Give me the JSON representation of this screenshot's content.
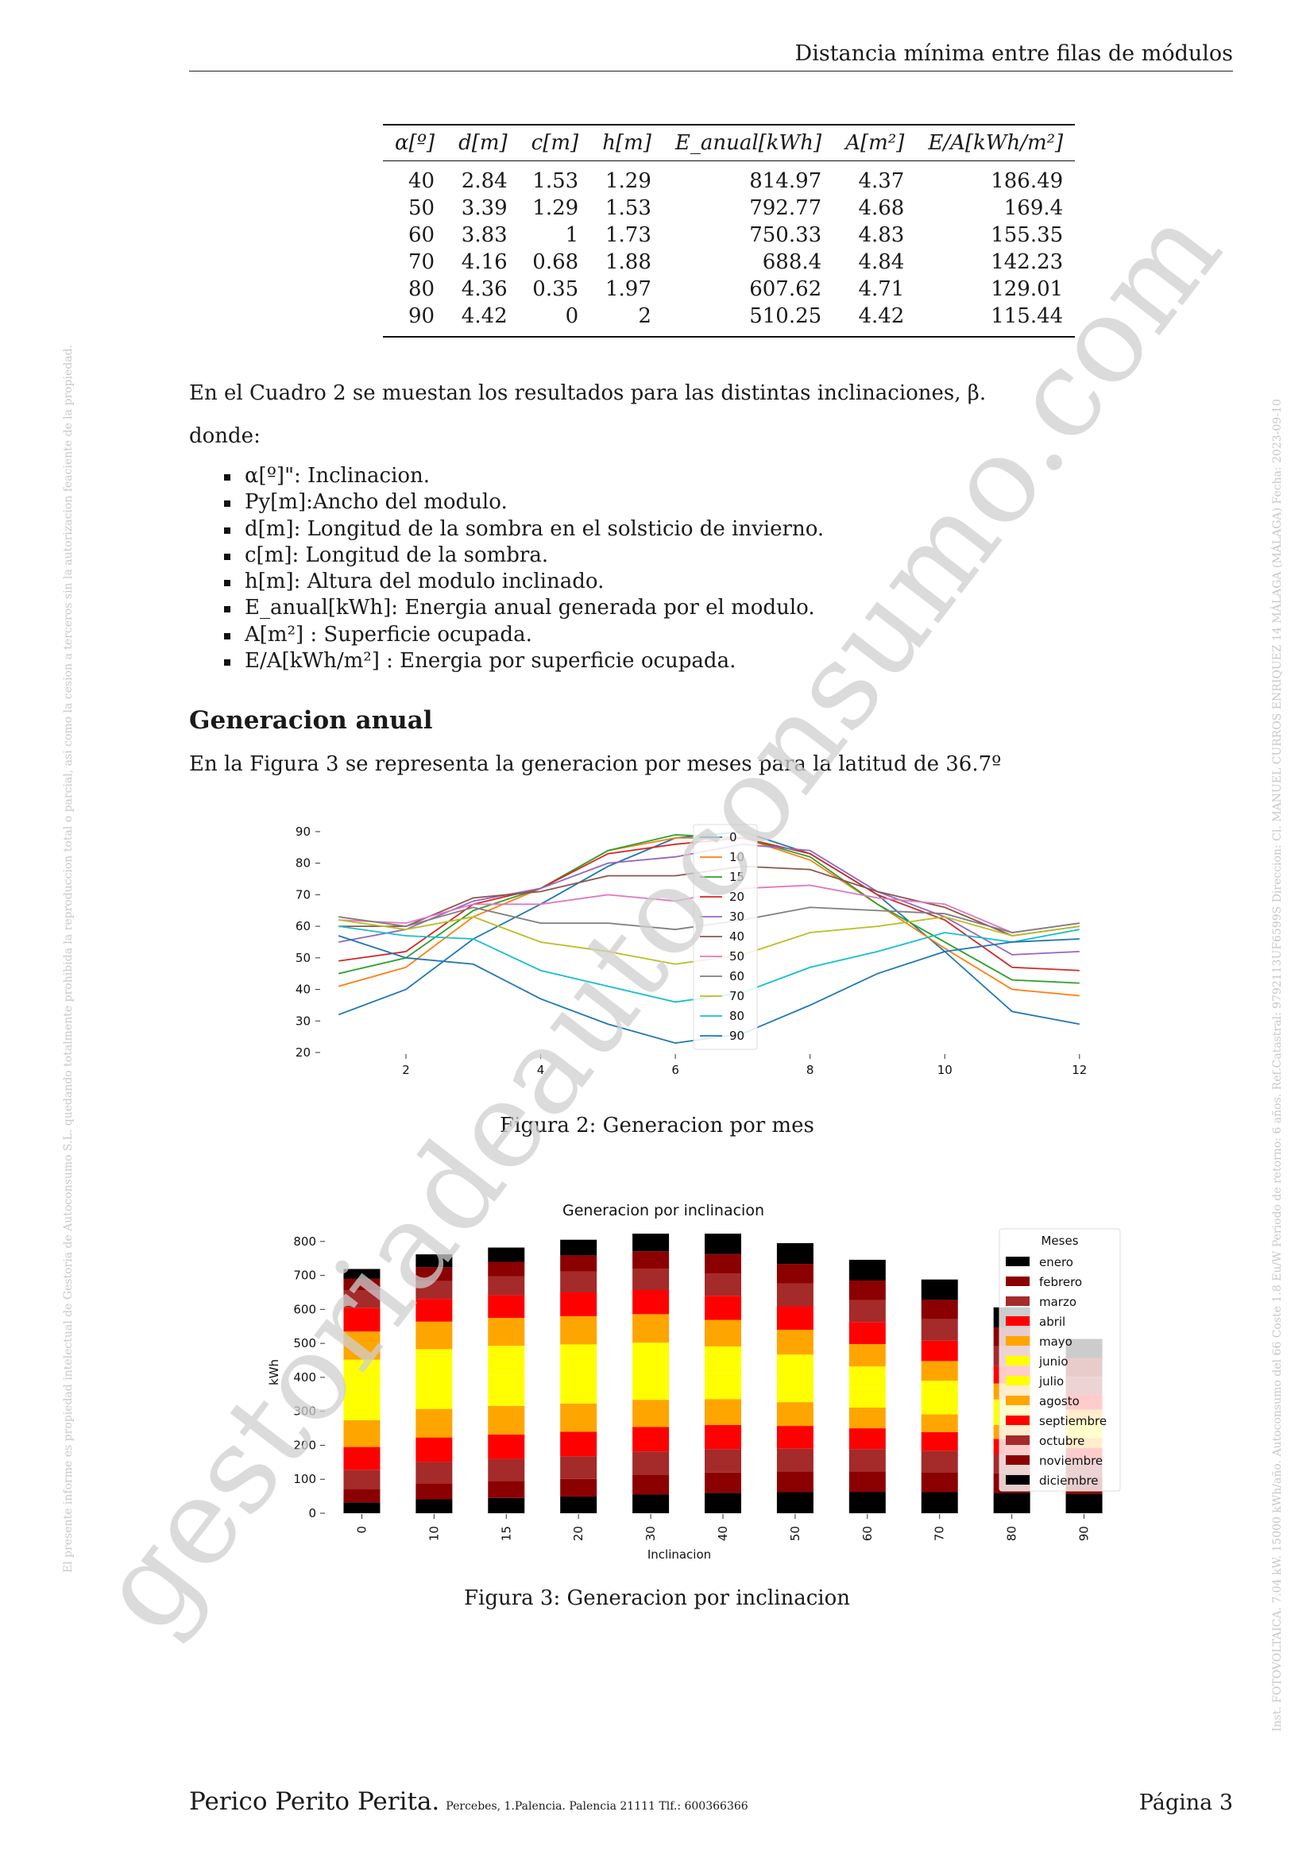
{
  "header": {
    "title": "Distancia mínima entre filas de módulos"
  },
  "table": {
    "headers": [
      "α[º]",
      "d[m]",
      "c[m]",
      "h[m]",
      "E_anual[kWh]",
      "A[m²]",
      "E/A[kWh/m²]"
    ],
    "rows": [
      [
        "40",
        "2.84",
        "1.53",
        "1.29",
        "814.97",
        "4.37",
        "186.49"
      ],
      [
        "50",
        "3.39",
        "1.29",
        "1.53",
        "792.77",
        "4.68",
        "169.4"
      ],
      [
        "60",
        "3.83",
        "1",
        "1.73",
        "750.33",
        "4.83",
        "155.35"
      ],
      [
        "70",
        "4.16",
        "0.68",
        "1.88",
        "688.4",
        "4.84",
        "142.23"
      ],
      [
        "80",
        "4.36",
        "0.35",
        "1.97",
        "607.62",
        "4.71",
        "129.01"
      ],
      [
        "90",
        "4.42",
        "0",
        "2",
        "510.25",
        "4.42",
        "115.44"
      ]
    ]
  },
  "text": {
    "intro": "En el Cuadro 2 se muestan los resultados para las distintas inclinaciones, β.",
    "donde": "donde:",
    "definitions": [
      "α[º]\": Inclinacion.",
      "Py[m]:Ancho del modulo.",
      "d[m]: Longitud de la sombra en el solsticio de invierno.",
      "c[m]: Longitud de la sombra.",
      "h[m]: Altura del modulo inclinado.",
      "E_anual[kWh]: Energia anual generada por el modulo.",
      "A[m²] : Superficie ocupada.",
      "E/A[kWh/m²] : Energia por superficie ocupada."
    ],
    "section_title": "Generacion anual",
    "section_text": "En la Figura 3 se representa la generacion por meses para la latitud de 36.7º",
    "caption_fig2": "Figura 2: Generacion por mes",
    "caption_fig3": "Figura 3: Generacion por inclinacion"
  },
  "footer": {
    "name": "Perico Perito Perita.",
    "address": "Percebes, 1.Palencia. Palencia 21111 Tlf.: 600366366",
    "page": "Página 3"
  },
  "watermark": "gestoriadeautoconsumo.com",
  "side_notes": {
    "left": "El presente informe es propiedad intelectual de Gestoria de Autoconsumo S.L. quedando totalmente prohibida la reproduccion total o parcial, asi como la cesion a terceros sin la autorizacion feaciente de la propiedad.",
    "right": "Inst. FOTOVOLTAICA. 7.04 kW. 15000 kWh/año. Autoconsumo del 66 Coste 1.8 Eu/W Periodo de retorno: 6 años. Ref.Catastral: 9792113UF6599S Direccion: Cl. MANUEL CURROS ENRIQUEZ 14 MÁLAGA (MÁLAGA) Fecha: 2023-09-10"
  },
  "colors": {
    "line_series": [
      "#1f77b4",
      "#ff7f0e",
      "#2ca02c",
      "#d62728",
      "#9467bd",
      "#8c564b",
      "#e377c2",
      "#7f7f7f",
      "#bcbd22",
      "#17becf",
      "#1f77b4"
    ],
    "months": [
      "#000000",
      "#8b0000",
      "#a52a2a",
      "#ff0000",
      "#ffa500",
      "#ffff00",
      "#ffff00",
      "#ffa500",
      "#ff0000",
      "#a52a2a",
      "#8b0000",
      "#000000"
    ]
  },
  "chart_data": [
    {
      "type": "line",
      "title": "",
      "x": [
        1,
        2,
        3,
        4,
        5,
        6,
        7,
        8,
        9,
        10,
        11,
        12
      ],
      "xticks": [
        2,
        4,
        6,
        8,
        10,
        12
      ],
      "ylim": [
        20,
        93
      ],
      "yticks": [
        20,
        30,
        40,
        50,
        60,
        70,
        80,
        90
      ],
      "legend_position": "top-center",
      "series": [
        {
          "name": "0",
          "values": [
            32,
            40,
            56,
            67,
            79,
            88,
            90,
            83,
            70,
            52,
            33,
            29
          ]
        },
        {
          "name": "10",
          "values": [
            41,
            47,
            63,
            72,
            84,
            88,
            88,
            81,
            67,
            53,
            40,
            38
          ]
        },
        {
          "name": "15",
          "values": [
            45,
            50,
            65,
            72,
            84,
            89,
            88,
            82,
            67,
            55,
            43,
            42
          ]
        },
        {
          "name": "20",
          "values": [
            49,
            52,
            67,
            72,
            83,
            86,
            88,
            83,
            70,
            62,
            47,
            46
          ]
        },
        {
          "name": "30",
          "values": [
            55,
            59,
            68,
            72,
            80,
            82,
            86,
            84,
            71,
            63,
            51,
            52
          ]
        },
        {
          "name": "40",
          "values": [
            60,
            60,
            69,
            71,
            76,
            76,
            79,
            78,
            71,
            66,
            57,
            60
          ]
        },
        {
          "name": "50",
          "values": [
            62,
            61,
            67,
            67,
            70,
            68,
            72,
            73,
            69,
            67,
            58,
            61
          ]
        },
        {
          "name": "60",
          "values": [
            63,
            60,
            66,
            61,
            61,
            59,
            62,
            66,
            65,
            64,
            58,
            61
          ]
        },
        {
          "name": "70",
          "values": [
            62,
            59,
            63,
            55,
            52,
            48,
            51,
            58,
            60,
            63,
            57,
            60
          ]
        },
        {
          "name": "80",
          "values": [
            60,
            57,
            56,
            46,
            41,
            36,
            39,
            47,
            52,
            58,
            55,
            59
          ]
        },
        {
          "name": "90",
          "values": [
            57,
            50,
            48,
            37,
            29,
            23,
            26,
            35,
            45,
            52,
            55,
            56
          ]
        }
      ]
    },
    {
      "type": "bar",
      "stacked": true,
      "title": "Generacion por inclinacion",
      "xlabel": "Inclinacion",
      "ylabel": "kWh",
      "categories": [
        "0",
        "10",
        "15",
        "20",
        "30",
        "40",
        "50",
        "60",
        "70",
        "80",
        "90"
      ],
      "ylim": [
        0,
        830
      ],
      "yticks": [
        0,
        100,
        200,
        300,
        400,
        500,
        600,
        700,
        800
      ],
      "legend_title": "Meses",
      "legend_position": "right",
      "series": [
        {
          "name": "enero",
          "values": [
            32,
            41,
            45,
            49,
            55,
            60,
            62,
            63,
            62,
            60,
            57
          ]
        },
        {
          "name": "febrero",
          "values": [
            40,
            47,
            50,
            52,
            59,
            60,
            61,
            60,
            59,
            57,
            50
          ]
        },
        {
          "name": "marzo",
          "values": [
            56,
            63,
            65,
            67,
            68,
            69,
            67,
            66,
            63,
            56,
            48
          ]
        },
        {
          "name": "abril",
          "values": [
            67,
            72,
            72,
            72,
            72,
            71,
            67,
            61,
            55,
            46,
            37
          ]
        },
        {
          "name": "mayo",
          "values": [
            79,
            84,
            84,
            83,
            80,
            76,
            70,
            61,
            52,
            41,
            29
          ]
        },
        {
          "name": "junio",
          "values": [
            88,
            88,
            89,
            86,
            82,
            76,
            68,
            59,
            48,
            36,
            23
          ]
        },
        {
          "name": "julio",
          "values": [
            90,
            88,
            88,
            88,
            86,
            79,
            72,
            62,
            51,
            39,
            26
          ]
        },
        {
          "name": "agosto",
          "values": [
            83,
            81,
            82,
            83,
            84,
            78,
            73,
            66,
            58,
            47,
            35
          ]
        },
        {
          "name": "septiembre",
          "values": [
            70,
            67,
            67,
            70,
            71,
            71,
            69,
            65,
            60,
            52,
            45
          ]
        },
        {
          "name": "octubre",
          "values": [
            52,
            53,
            55,
            62,
            63,
            66,
            67,
            64,
            63,
            58,
            52
          ]
        },
        {
          "name": "noviembre",
          "values": [
            33,
            40,
            43,
            47,
            51,
            57,
            58,
            58,
            57,
            55,
            55
          ]
        },
        {
          "name": "diciembre",
          "values": [
            29,
            38,
            42,
            46,
            52,
            60,
            61,
            61,
            60,
            59,
            56
          ]
        }
      ]
    }
  ]
}
